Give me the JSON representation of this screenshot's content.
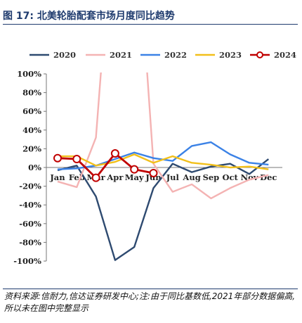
{
  "header": {
    "title": "图 17:  北美轮胎配套市场月度同比趋势"
  },
  "chart_data": {
    "type": "line",
    "categories": [
      "Jan",
      "Feb",
      "Mar",
      "Apr",
      "May",
      "Jun",
      "Jul",
      "Aug",
      "Sep",
      "Oct",
      "Nov",
      "Dec"
    ],
    "y_ticks": [
      "100%",
      "80%",
      "60%",
      "40%",
      "20%",
      "0%",
      "-20%",
      "-40%",
      "-60%",
      "-80%",
      "-100%"
    ],
    "ylim": [
      -100,
      100
    ],
    "legend_position": "top",
    "grid": false,
    "series": [
      {
        "name": "2020",
        "color": "#2e4a70",
        "markers": false,
        "values": [
          -3,
          2,
          -31,
          -99,
          -85,
          -22,
          4,
          -5,
          1,
          4,
          -7,
          9
        ]
      },
      {
        "name": "2021",
        "color": "#f4b3b3",
        "markers": false,
        "values": [
          -15,
          -21,
          32,
          300,
          300,
          4,
          -26,
          -18,
          -33,
          -22,
          -13,
          -8
        ]
      },
      {
        "name": "2022",
        "color": "#3b82e6",
        "markers": false,
        "values": [
          -2,
          -1,
          2,
          9,
          16,
          10,
          7,
          23,
          27,
          14,
          5,
          3
        ]
      },
      {
        "name": "2023",
        "color": "#f2c01b",
        "markers": false,
        "values": [
          12,
          12,
          2,
          6,
          14,
          5,
          12,
          5,
          3,
          0,
          1,
          -2
        ]
      },
      {
        "name": "2024",
        "color": "#c00000",
        "markers": true,
        "values": [
          10,
          9,
          -11,
          15,
          -2,
          -6,
          null,
          null,
          null,
          null,
          null,
          null
        ]
      }
    ]
  },
  "footer": {
    "source": "资料来源:信耐力,信达证券研发中心;注:由于同比基数低,2021年部分数据偏高,所以未在图中完整显示"
  }
}
